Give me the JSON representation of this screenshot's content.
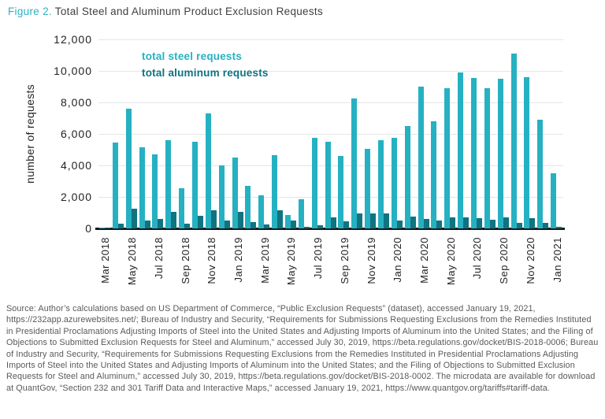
{
  "title": {
    "figure_label": "Figure 2.",
    "text": "Total Steel and Aluminum Product Exclusion Requests"
  },
  "colors": {
    "steel": "#25b1c2",
    "aluminum": "#0f7380",
    "figure_label": "#2cb3c3",
    "title_text": "#414042",
    "axis_text": "#231f20",
    "source_text": "#58595b",
    "gridline": "#e4e5e6",
    "axis_line": "#1a1a1a"
  },
  "chart_data": {
    "type": "bar",
    "title": "Total Steel and Aluminum Product Exclusion Requests",
    "xlabel": "",
    "ylabel": "number of requests",
    "ylim": [
      0,
      12000
    ],
    "yticks": [
      0,
      2000,
      4000,
      6000,
      8000,
      10000,
      12000
    ],
    "grid": "horizontal",
    "legend_position": "top-left-inside",
    "xtick_shown_every": 2,
    "categories": [
      "Mar 2018",
      "Apr 2018",
      "May 2018",
      "Jun 2018",
      "Jul 2018",
      "Aug 2018",
      "Sep 2018",
      "Oct 2018",
      "Nov 2018",
      "Dec 2018",
      "Jan 2019",
      "Feb 2019",
      "Mar 2019",
      "Apr 2019",
      "May 2019",
      "Jun 2019",
      "Jul 2019",
      "Aug 2019",
      "Sep 2019",
      "Oct 2019",
      "Nov 2019",
      "Dec 2019",
      "Jan 2020",
      "Feb 2020",
      "Mar 2020",
      "Apr 2020",
      "May 2020",
      "Jun 2020",
      "Jul 2020",
      "Aug 2020",
      "Sep 2020",
      "Oct 2020",
      "Nov 2020",
      "Dec 2020",
      "Jan 2021"
    ],
    "series": [
      {
        "name": "total steel requests",
        "color": "#25b1c2",
        "values": [
          60,
          5450,
          7600,
          5150,
          4700,
          5600,
          2550,
          5500,
          7300,
          4000,
          4500,
          2700,
          2100,
          4650,
          850,
          1850,
          5750,
          5500,
          4600,
          8250,
          5050,
          5600,
          5750,
          6500,
          9000,
          6800,
          8900,
          9900,
          9550,
          8900,
          9500,
          11100,
          9600,
          6900,
          3500
        ]
      },
      {
        "name": "total aluminum requests",
        "color": "#0f7380",
        "values": [
          20,
          300,
          1250,
          500,
          600,
          1050,
          300,
          800,
          1150,
          500,
          1050,
          400,
          250,
          1150,
          500,
          100,
          200,
          700,
          450,
          950,
          950,
          950,
          500,
          750,
          600,
          500,
          700,
          700,
          650,
          550,
          700,
          350,
          650,
          350,
          100
        ]
      }
    ]
  },
  "source_note": "Source: Author’s calculations based on US Department of Commerce, “Public Exclusion Requests” (dataset), accessed January 19, 2021, https://232app.azurewebsites.net/; Bureau of Industry and Security, “Requirements for Submissions Requesting Exclusions from the Remedies Instituted in Presidential Proclamations Adjusting Imports of Steel into the United States and Adjusting Imports of Aluminum into the United States; and the Filing of Objections to Submitted Exclusion Requests for Steel and Aluminum,” accessed July 30, 2019, https://beta.regulations.gov/docket/BIS-2018-0006; Bureau of Industry and Security, “Requirements for Submissions Requesting Exclusions from the Remedies Instituted in Presidential Proclamations Adjusting Imports of Steel into the United States and Adjusting Imports of Aluminum into the United States; and the Filing of Objections to Submitted Exclusion Requests for Steel and Aluminum,” accessed July 30, 2019, https://beta.regulations.gov/docket/BIS-2018-0002. The microdata are available for download at QuantGov, “Section 232 and 301 Tariff Data and Interactive Maps,” accessed January 19, 2021, https://www.quantgov.org/tariffs#tariff-data."
}
